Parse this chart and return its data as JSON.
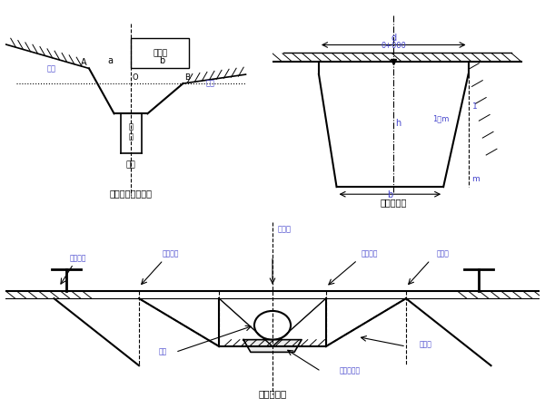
{
  "bg_color": "#ffffff",
  "line_color": "#000000",
  "blue_color": "#4444cc",
  "fig1_title": "横断面测设示意图",
  "fig2_title": "开槽断面图",
  "fig3_title": "坡度桩设置"
}
